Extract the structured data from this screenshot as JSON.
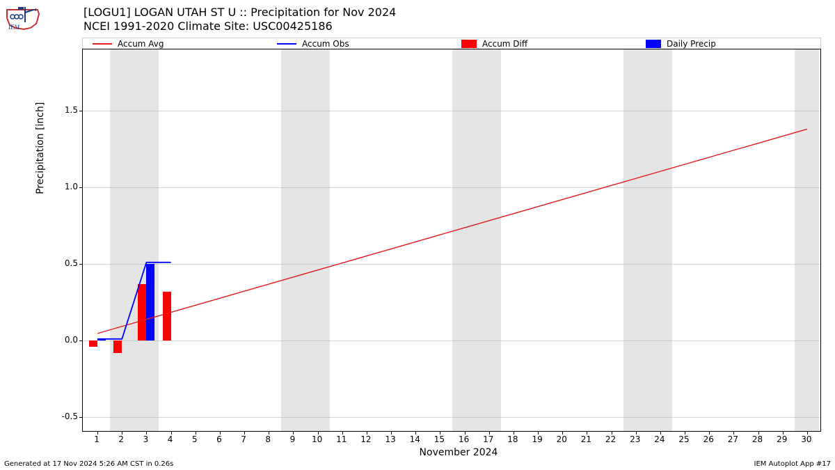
{
  "logo": {
    "stroke": "#c43131",
    "fill_state": "#ffffff"
  },
  "title": {
    "line1": "[LOGU1] LOGAN UTAH ST U :: Precipitation for Nov 2024",
    "line2": "NCEI 1991-2020 Climate Site: USC00425186",
    "fontsize": 16
  },
  "legend": {
    "entries": [
      {
        "label": "Accum Avg",
        "type": "line",
        "color": "#e41a1c"
      },
      {
        "label": "Accum Obs",
        "type": "line",
        "color": "#0000ff"
      },
      {
        "label": "Accum Diff",
        "type": "patch",
        "color": "#ff0000"
      },
      {
        "label": "Daily Precip",
        "type": "patch",
        "color": "#0000ff"
      }
    ]
  },
  "chart": {
    "type": "line+bar",
    "xlim": [
      0.4,
      30.6
    ],
    "ylim": [
      -0.6,
      1.9
    ],
    "yticks": [
      -0.5,
      0.0,
      0.5,
      1.0,
      1.5
    ],
    "xticks": [
      1,
      2,
      3,
      4,
      5,
      6,
      7,
      8,
      9,
      10,
      11,
      12,
      13,
      14,
      15,
      16,
      17,
      18,
      19,
      20,
      21,
      22,
      23,
      24,
      25,
      26,
      27,
      28,
      29,
      30
    ],
    "ylabel": "Precipitation [inch]",
    "xlabel": "November 2024",
    "grid_color": "#b0b0b0",
    "background_color": "#ffffff",
    "weekend_color": "#e5e5e5",
    "weekend_pairs": [
      [
        2,
        3
      ],
      [
        9,
        10
      ],
      [
        16,
        17
      ],
      [
        23,
        24
      ],
      [
        30,
        30
      ]
    ],
    "accum_avg": {
      "color": "#e41a1c",
      "linewidth": 1.4,
      "x": [
        1,
        2,
        3,
        4,
        5,
        6,
        7,
        8,
        9,
        10,
        11,
        12,
        13,
        14,
        15,
        16,
        17,
        18,
        19,
        20,
        21,
        22,
        23,
        24,
        25,
        26,
        27,
        28,
        29,
        30
      ],
      "y": [
        0.046,
        0.092,
        0.138,
        0.184,
        0.23,
        0.276,
        0.322,
        0.368,
        0.414,
        0.46,
        0.506,
        0.552,
        0.598,
        0.644,
        0.69,
        0.736,
        0.782,
        0.828,
        0.874,
        0.92,
        0.966,
        1.012,
        1.058,
        1.104,
        1.15,
        1.196,
        1.242,
        1.288,
        1.334,
        1.38
      ]
    },
    "accum_obs": {
      "color": "#0000ff",
      "linewidth": 1.8,
      "x": [
        1,
        2,
        3,
        4
      ],
      "y": [
        0.01,
        0.01,
        0.51,
        0.51
      ]
    },
    "accum_diff": {
      "color": "#ff0000",
      "bar_width": 0.34,
      "x": [
        1,
        2,
        3,
        4
      ],
      "y": [
        -0.04,
        -0.08,
        0.37,
        0.32
      ]
    },
    "daily_precip": {
      "color": "#0000ff",
      "bar_width": 0.34,
      "x": [
        1,
        2,
        3,
        4
      ],
      "y": [
        0.01,
        0.0,
        0.5,
        0.0
      ]
    }
  },
  "footer": {
    "left": "Generated at 17 Nov 2024 5:26 AM CST in 0.26s",
    "right": "IEM Autoplot App #17",
    "fontsize": 10
  }
}
